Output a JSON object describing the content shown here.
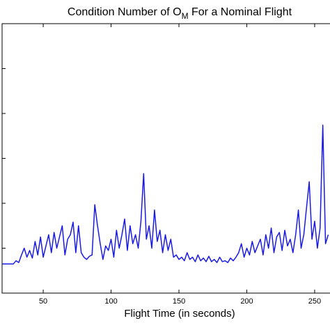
{
  "chart_data": {
    "type": "line",
    "title": [
      "Condition Number of O",
      "M",
      " For a Nominal Flight"
    ],
    "xlabel": "Flight Time (in seconds)",
    "x": [
      20,
      22,
      24,
      26,
      28,
      30,
      32,
      34,
      36,
      38,
      40,
      42,
      44,
      46,
      48,
      50,
      52,
      54,
      56,
      58,
      60,
      62,
      64,
      66,
      68,
      70,
      72,
      74,
      76,
      78,
      80,
      82,
      84,
      86,
      88,
      90,
      92,
      94,
      96,
      98,
      100,
      102,
      104,
      106,
      108,
      110,
      112,
      114,
      116,
      118,
      120,
      122,
      124,
      126,
      128,
      130,
      132,
      134,
      136,
      138,
      140,
      142,
      144,
      146,
      148,
      150,
      152,
      154,
      156,
      158,
      160,
      162,
      164,
      166,
      168,
      170,
      172,
      174,
      176,
      178,
      180,
      182,
      184,
      186,
      188,
      190,
      192,
      194,
      196,
      198,
      200,
      202,
      204,
      206,
      208,
      210,
      212,
      214,
      216,
      218,
      220,
      222,
      224,
      226,
      228,
      230,
      232,
      234,
      236,
      238,
      240,
      242,
      244,
      246,
      248,
      250,
      252,
      254,
      256,
      258,
      260
    ],
    "values": [
      0.65,
      0.65,
      0.65,
      0.65,
      0.65,
      0.72,
      0.68,
      0.85,
      1.0,
      0.8,
      0.95,
      0.78,
      1.15,
      0.85,
      1.25,
      0.8,
      1.05,
      1.3,
      0.9,
      1.35,
      1.0,
      1.25,
      1.5,
      0.85,
      1.2,
      1.3,
      1.58,
      0.9,
      1.5,
      0.9,
      0.8,
      0.75,
      0.82,
      0.85,
      1.97,
      1.5,
      1.1,
      0.75,
      1.05,
      0.95,
      1.2,
      0.8,
      1.4,
      1.0,
      1.3,
      1.65,
      0.95,
      1.5,
      1.1,
      1.3,
      1.0,
      1.6,
      2.66,
      1.2,
      1.5,
      1.0,
      1.85,
      1.15,
      1.4,
      0.9,
      1.3,
      0.95,
      1.2,
      0.8,
      0.85,
      0.75,
      0.8,
      0.72,
      0.9,
      0.75,
      0.8,
      0.7,
      0.85,
      0.72,
      0.78,
      0.7,
      0.82,
      0.7,
      0.75,
      0.68,
      0.8,
      0.7,
      0.72,
      0.68,
      0.78,
      0.72,
      0.8,
      0.9,
      1.1,
      0.8,
      1.0,
      0.85,
      1.15,
      0.9,
      1.05,
      1.2,
      0.85,
      1.3,
      1.0,
      1.45,
      0.9,
      1.25,
      1.35,
      0.95,
      1.4,
      1.05,
      1.2,
      0.9,
      1.3,
      1.85,
      1.0,
      1.3,
      1.9,
      2.48,
      1.2,
      1.6,
      1.0,
      1.45,
      3.74,
      1.1,
      1.3
    ],
    "color": "#1a1ae6",
    "xlim": [
      19.7,
      261.3
    ],
    "xticks": [
      50,
      100,
      150,
      200,
      250
    ],
    "ylim": [
      0,
      6
    ],
    "yticks": [
      1,
      2,
      3,
      4,
      5
    ]
  }
}
